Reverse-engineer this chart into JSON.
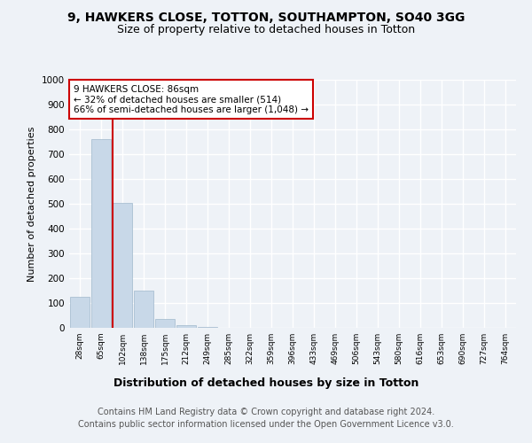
{
  "title1": "9, HAWKERS CLOSE, TOTTON, SOUTHAMPTON, SO40 3GG",
  "title2": "Size of property relative to detached houses in Totton",
  "xlabel": "Distribution of detached houses by size in Totton",
  "ylabel": "Number of detached properties",
  "footer": "Contains HM Land Registry data © Crown copyright and database right 2024.\nContains public sector information licensed under the Open Government Licence v3.0.",
  "bin_labels": [
    "28sqm",
    "65sqm",
    "102sqm",
    "138sqm",
    "175sqm",
    "212sqm",
    "249sqm",
    "285sqm",
    "322sqm",
    "359sqm",
    "396sqm",
    "433sqm",
    "469sqm",
    "506sqm",
    "543sqm",
    "580sqm",
    "616sqm",
    "653sqm",
    "690sqm",
    "727sqm",
    "764sqm"
  ],
  "bar_values": [
    125,
    760,
    505,
    150,
    35,
    10,
    2,
    0,
    0,
    0,
    0,
    0,
    0,
    0,
    0,
    0,
    0,
    0,
    0,
    0,
    0
  ],
  "bar_color": "#c8d8e8",
  "bar_edge_color": "#a0b8cc",
  "ylim": [
    0,
    1000
  ],
  "yticks": [
    0,
    100,
    200,
    300,
    400,
    500,
    600,
    700,
    800,
    900,
    1000
  ],
  "red_line_x": 1.55,
  "annotation_box_text": "9 HAWKERS CLOSE: 86sqm\n← 32% of detached houses are smaller (514)\n66% of semi-detached houses are larger (1,048) →",
  "annotation_box_color": "#ffffff",
  "annotation_box_edge": "#cc0000",
  "red_line_color": "#cc0000",
  "background_color": "#eef2f7",
  "plot_background": "#eef2f7",
  "grid_color": "#ffffff",
  "title1_fontsize": 10,
  "title2_fontsize": 9,
  "xlabel_fontsize": 9,
  "ylabel_fontsize": 8,
  "footer_fontsize": 7
}
